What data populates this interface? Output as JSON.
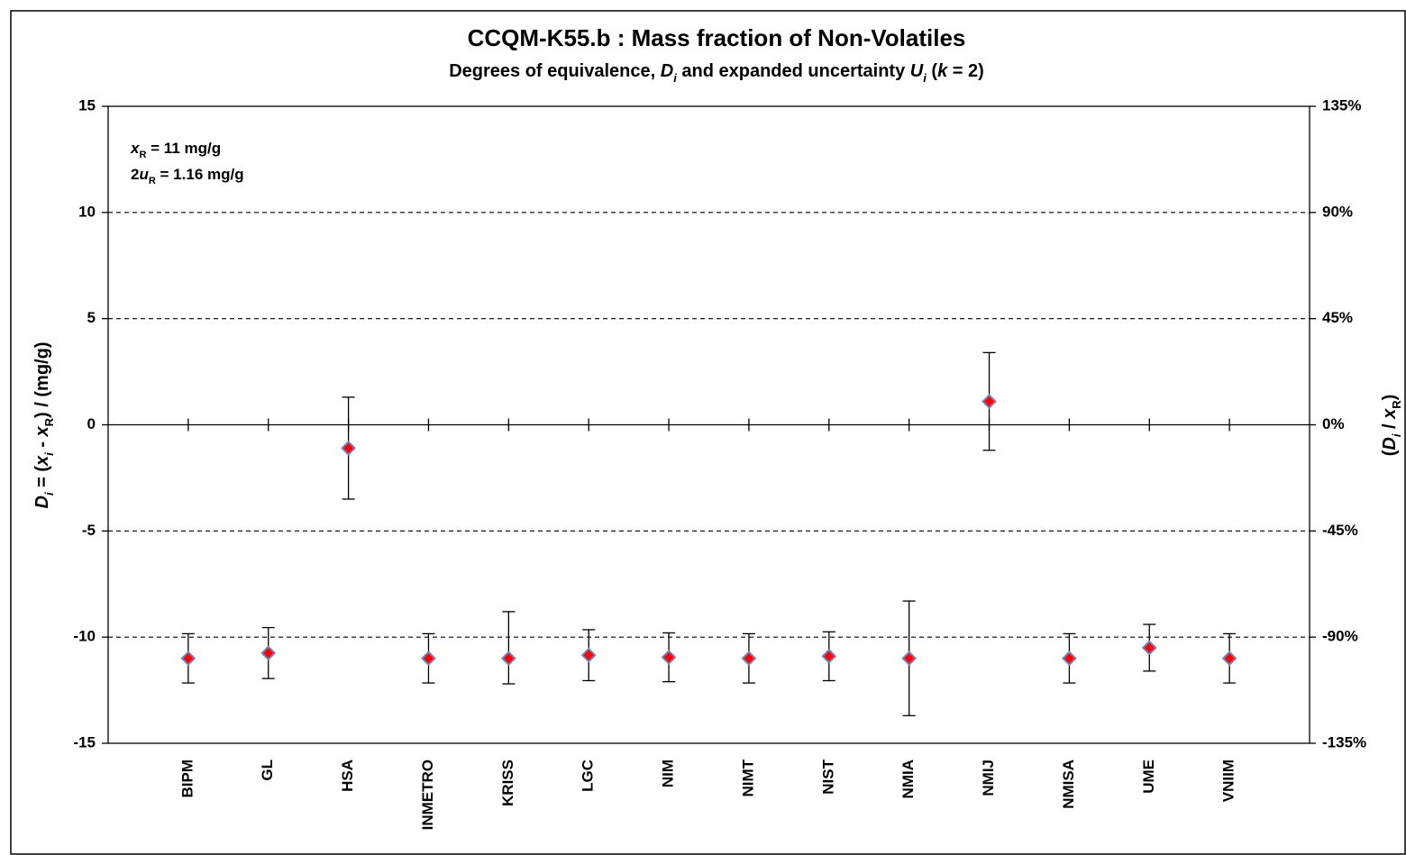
{
  "chart_data": {
    "type": "errorbar",
    "title": "CCQM-K55.b : Mass fraction of  Non-Volatiles",
    "subtitle": [
      {
        "text": "Degrees of equivalence, ",
        "style": "n"
      },
      {
        "text": "D",
        "style": "i"
      },
      {
        "text": "i",
        "style": "isub"
      },
      {
        "text": " and expanded uncertainty ",
        "style": "n"
      },
      {
        "text": "U",
        "style": "i"
      },
      {
        "text": "i",
        "style": "isub"
      },
      {
        "text": " (",
        "style": "n"
      },
      {
        "text": "k",
        "style": "i"
      },
      {
        "text": " = 2)",
        "style": "n"
      }
    ],
    "y_label": [
      {
        "text": "D",
        "style": "i"
      },
      {
        "text": "i",
        "style": "isub"
      },
      {
        "text": " = (",
        "style": "n"
      },
      {
        "text": "x",
        "style": "i"
      },
      {
        "text": "i",
        "style": "isub"
      },
      {
        "text": " - ",
        "style": "n"
      },
      {
        "text": "x",
        "style": "i"
      },
      {
        "text": "R",
        "style": "sub"
      },
      {
        "text": ") / (mg/g)",
        "style": "n"
      }
    ],
    "y2_label": [
      {
        "text": "(",
        "style": "n"
      },
      {
        "text": "D",
        "style": "i"
      },
      {
        "text": "i",
        "style": "isub"
      },
      {
        "text": " / ",
        "style": "n"
      },
      {
        "text": "x",
        "style": "i"
      },
      {
        "text": "R",
        "style": "sub"
      },
      {
        "text": ")",
        "style": "n"
      }
    ],
    "annotations": [
      [
        {
          "text": "x",
          "style": "i"
        },
        {
          "text": "R",
          "style": "sub"
        },
        {
          "text": " = 11 mg/g",
          "style": "n"
        }
      ],
      [
        {
          "text": "2",
          "style": "n"
        },
        {
          "text": "u",
          "style": "i"
        },
        {
          "text": "R",
          "style": "sub"
        },
        {
          "text": " = 1.16 mg/g",
          "style": "n"
        }
      ]
    ],
    "categories": [
      "BIPM",
      "GL",
      "HSA",
      "INMETRO",
      "KRISS",
      "LGC",
      "NIM",
      "NIMT",
      "NIST",
      "NMIA",
      "NMIJ",
      "NMISA",
      "UME",
      "VNIIM"
    ],
    "values": [
      -11.0,
      -10.75,
      -1.1,
      -11.0,
      -11.0,
      -10.85,
      -10.95,
      -11.0,
      -10.9,
      -11.0,
      1.1,
      -11.0,
      -10.5,
      -11.0
    ],
    "error_plus": [
      1.16,
      1.2,
      2.4,
      1.16,
      2.2,
      1.2,
      1.15,
      1.16,
      1.15,
      2.7,
      2.3,
      1.16,
      1.1,
      1.16
    ],
    "error_minus": [
      1.16,
      1.2,
      2.4,
      1.16,
      1.2,
      1.2,
      1.15,
      1.16,
      1.15,
      2.7,
      2.3,
      1.16,
      1.1,
      1.16
    ],
    "marker_color": "#ff0000",
    "marker_edge_color": "#7a7fb8",
    "ylim": [
      -15,
      15
    ],
    "yticks": [
      -15,
      -10,
      -5,
      0,
      5,
      10,
      15
    ],
    "y2lim": [
      -135,
      135
    ],
    "y2ticks": [
      {
        "value": -135,
        "label": "-135%"
      },
      {
        "value": -90,
        "label": "-90%"
      },
      {
        "value": -45,
        "label": "-45%"
      },
      {
        "value": 0,
        "label": "0%"
      },
      {
        "value": 45,
        "label": "45%"
      },
      {
        "value": 90,
        "label": "90%"
      },
      {
        "value": 135,
        "label": "135%"
      }
    ],
    "grid": true
  }
}
